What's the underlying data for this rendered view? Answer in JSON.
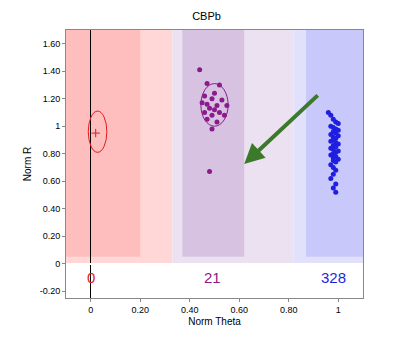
{
  "chart_data": {
    "type": "scatter",
    "title": "CBPb",
    "x_label": "Norm Theta",
    "y_label": "Norm R",
    "xlim": [
      -0.1,
      1.1
    ],
    "ylim": [
      -0.25,
      1.7
    ],
    "xticks": [
      0,
      {
        "value": 0.2,
        "label": "0.20"
      },
      {
        "value": 0.4,
        "label": "0.40"
      },
      {
        "value": 0.6,
        "label": "0.60"
      },
      {
        "value": 0.8,
        "label": "0.80"
      },
      1
    ],
    "yticks": [
      {
        "value": -0.2,
        "label": "-0.20"
      },
      0,
      {
        "value": 0.2,
        "label": "0.20"
      },
      {
        "value": 0.4,
        "label": "0.40"
      },
      {
        "value": 0.6,
        "label": "0.60"
      },
      {
        "value": 0.8,
        "label": "0.80"
      },
      1,
      {
        "value": 1.2,
        "label": "1.20"
      },
      {
        "value": 1.4,
        "label": "1.40"
      },
      {
        "value": 1.6,
        "label": "1.60"
      }
    ],
    "grid": false,
    "regions": [
      {
        "color": "rgba(255,215,215,1)",
        "x": [
          -0.1,
          0.33
        ],
        "y": [
          0,
          1.7
        ]
      },
      {
        "color": "rgba(236,225,240,1)",
        "x": [
          0.33,
          0.82
        ],
        "y": [
          0,
          1.7
        ]
      },
      {
        "color": "rgba(225,225,252,1)",
        "x": [
          0.82,
          1.1
        ],
        "y": [
          0,
          1.7
        ]
      },
      {
        "color": "rgba(255,190,190,1)",
        "x": [
          -0.1,
          0.2
        ],
        "y": [
          0.05,
          1.7
        ]
      },
      {
        "color": "rgba(215,195,225,1)",
        "x": [
          0.37,
          0.62
        ],
        "y": [
          0.05,
          1.7
        ]
      },
      {
        "color": "rgba(200,200,250,1)",
        "x": [
          0.87,
          1.1
        ],
        "y": [
          0.05,
          1.7
        ]
      }
    ],
    "series": [
      {
        "name": "0",
        "color": "#e31a1c",
        "marker": "cross",
        "count": 0,
        "count_at": [
          0,
          -0.1
        ],
        "ellipse": {
          "x": [
            -0.01,
            0.065
          ],
          "y": [
            0.81,
            1.11
          ]
        },
        "x": [
          0.02
        ],
        "values": [
          0.95
        ]
      },
      {
        "name": "21",
        "color": "#8b1a8b",
        "marker": "circle",
        "count": 21,
        "count_at": [
          0.49,
          -0.1
        ],
        "ellipse": {
          "x": [
            0.445,
            0.555
          ],
          "y": [
            1.0,
            1.31
          ]
        },
        "x": [
          0.44,
          0.47,
          0.52,
          0.5,
          0.46,
          0.49,
          0.53,
          0.45,
          0.47,
          0.51,
          0.55,
          0.48,
          0.5,
          0.46,
          0.52,
          0.49,
          0.54,
          0.47,
          0.51,
          0.49,
          0.48
        ],
        "values": [
          1.41,
          1.31,
          1.3,
          1.24,
          1.22,
          1.2,
          1.19,
          1.17,
          1.16,
          1.15,
          1.15,
          1.13,
          1.12,
          1.1,
          1.1,
          1.08,
          1.08,
          1.05,
          1.03,
          0.98,
          0.67
        ]
      },
      {
        "name": "328",
        "color": "#1f1fe0",
        "marker": "circle",
        "count": 328,
        "count_at": [
          0.98,
          -0.1
        ],
        "x": [
          0.96,
          0.97,
          0.98,
          0.99,
          1.0,
          0.97,
          0.98,
          0.99,
          1.0,
          0.98,
          0.99,
          0.97,
          1.0,
          0.98,
          0.99,
          0.98,
          0.97,
          0.99,
          1.0,
          0.98,
          0.99,
          0.97,
          0.98,
          1.0,
          0.99,
          0.98,
          0.97,
          0.99,
          0.98,
          1.0,
          0.98,
          0.99,
          0.97,
          0.98,
          0.99,
          0.98,
          0.97,
          0.99,
          0.98,
          0.99
        ],
        "values": [
          1.1,
          1.08,
          1.05,
          1.03,
          1.02,
          1.0,
          0.99,
          0.98,
          0.97,
          0.96,
          0.95,
          0.94,
          0.93,
          0.92,
          0.91,
          0.9,
          0.89,
          0.88,
          0.87,
          0.86,
          0.85,
          0.84,
          0.83,
          0.82,
          0.81,
          0.8,
          0.79,
          0.78,
          0.77,
          0.76,
          0.75,
          0.74,
          0.72,
          0.7,
          0.68,
          0.65,
          0.62,
          0.58,
          0.55,
          0.52
        ]
      }
    ]
  }
}
